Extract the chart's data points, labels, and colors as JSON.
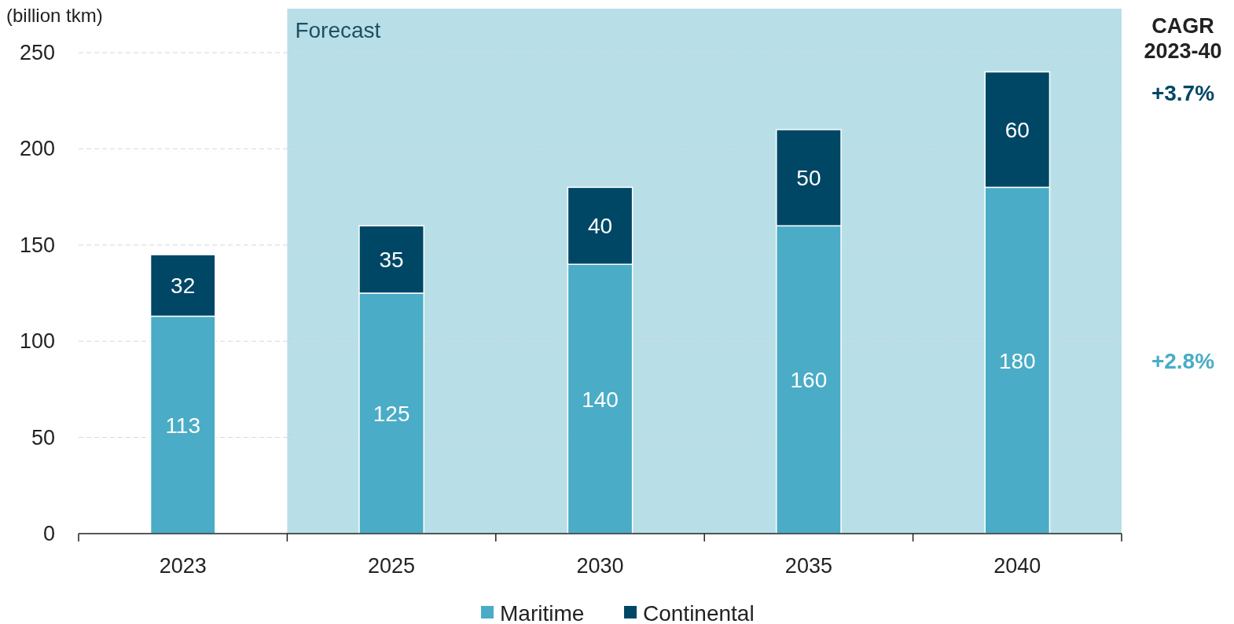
{
  "chart_data": {
    "type": "bar",
    "ylabel": "(billion tkm)",
    "categories": [
      "2023",
      "2025",
      "2030",
      "2035",
      "2040"
    ],
    "stacked": true,
    "series": [
      {
        "name": "Maritime",
        "color": "#4aacc6",
        "values": [
          113,
          125,
          140,
          160,
          180
        ]
      },
      {
        "name": "Continental",
        "color": "#004766",
        "values": [
          32,
          35,
          40,
          50,
          60
        ]
      }
    ],
    "ylim": [
      0,
      250
    ],
    "yticks": [
      0,
      50,
      100,
      150,
      200,
      250
    ],
    "grid": "y",
    "legend": "bottom",
    "data_labels": true,
    "bands": [
      {
        "axis": "x",
        "from": "2025",
        "to": "2040",
        "label": "Forecast",
        "color": "#b8dfe8"
      }
    ],
    "annotations": [
      "CAGR\n2023-40",
      "+3.7%",
      "+2.8%"
    ]
  }
}
